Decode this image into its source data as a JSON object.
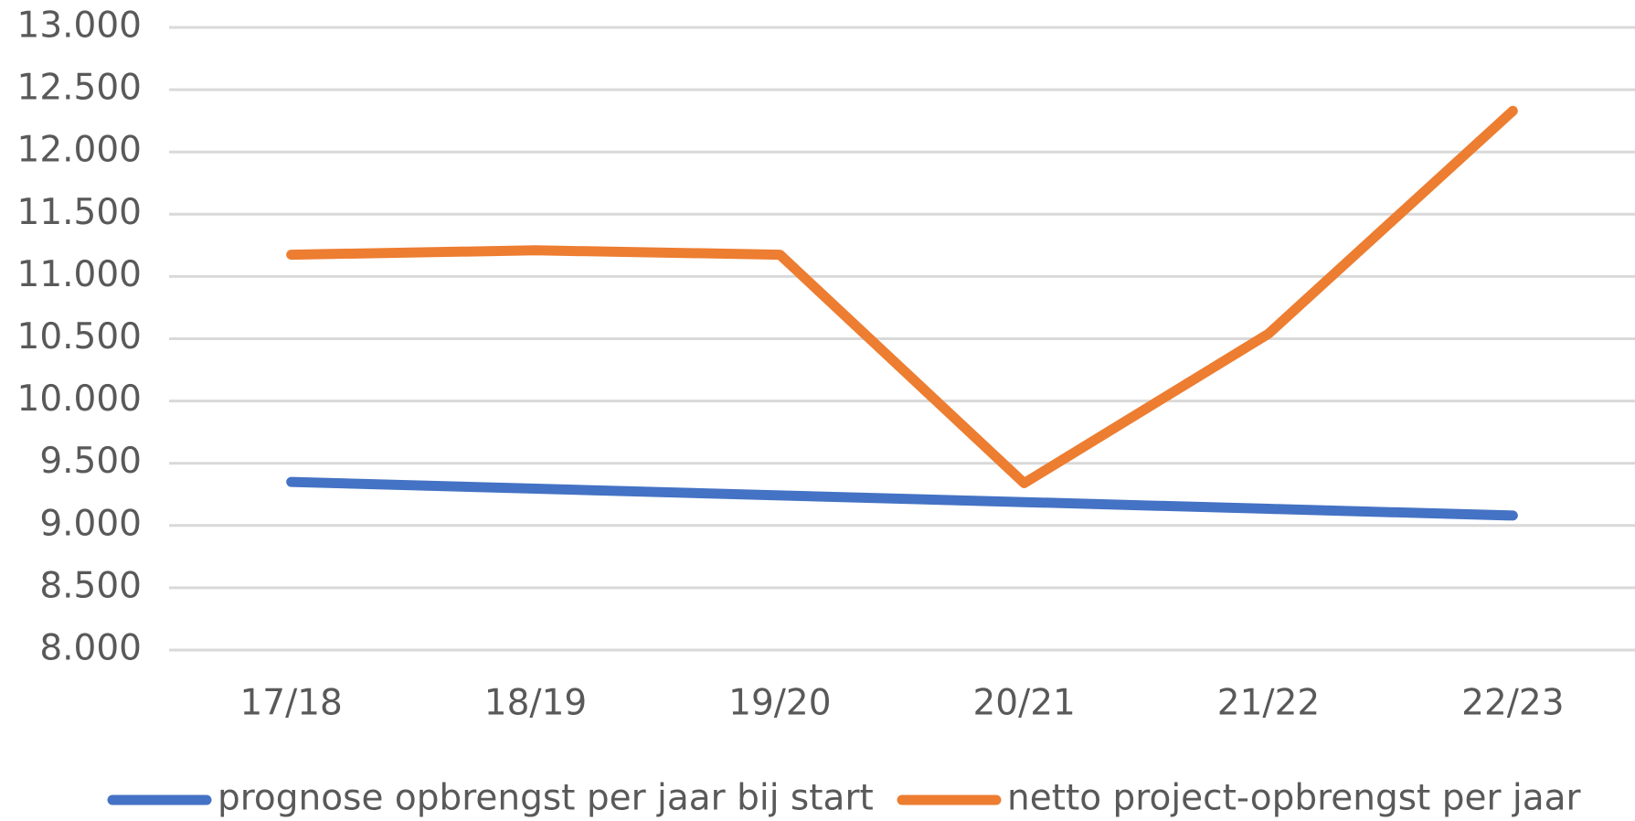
{
  "chart_data": {
    "type": "line",
    "categories": [
      "17/18",
      "18/19",
      "19/20",
      "20/21",
      "21/22",
      "22/23"
    ],
    "series": [
      {
        "name": "prognose opbrengst per jaar bij start",
        "color": "#4472c4",
        "values": [
          9350,
          9296,
          9242,
          9188,
          9134,
          9080
        ]
      },
      {
        "name": "netto project-opbrengst per jaar",
        "color": "#ed7d31",
        "values": [
          11175,
          11210,
          11175,
          9340,
          10540,
          12330
        ]
      }
    ],
    "ylim": [
      8000,
      13000
    ],
    "yticks": [
      {
        "value": 8000,
        "label": "8.000"
      },
      {
        "value": 8500,
        "label": "8.500"
      },
      {
        "value": 9000,
        "label": "9.000"
      },
      {
        "value": 9500,
        "label": "9.500"
      },
      {
        "value": 10000,
        "label": "10.000"
      },
      {
        "value": 10500,
        "label": "10.500"
      },
      {
        "value": 11000,
        "label": "11.000"
      },
      {
        "value": 11500,
        "label": "11.500"
      },
      {
        "value": 12000,
        "label": "12.000"
      },
      {
        "value": 12500,
        "label": "12.500"
      },
      {
        "value": 13000,
        "label": "13.000"
      }
    ],
    "grid": true,
    "legend": "bottom"
  }
}
